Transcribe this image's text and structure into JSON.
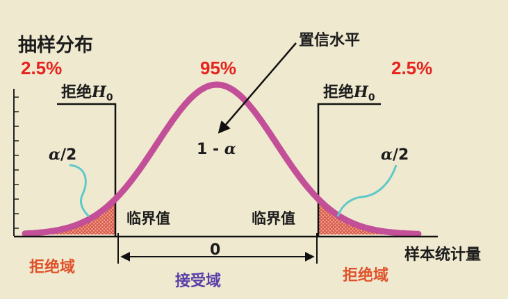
{
  "title": "抽样分布",
  "percent_left": "2.5%",
  "percent_center": "95%",
  "percent_right": "2.5%",
  "confidence_label": "置信水平",
  "confidence_expr_prefix": "1 - ",
  "confidence_expr_symbol": "α",
  "reject_h0_prefix": "拒绝",
  "reject_h0_symbol": "H",
  "reject_h0_sub": "0",
  "alpha_half_symbol": "α",
  "alpha_half_suffix": "/2",
  "critical_value_label": "临界值",
  "zero_label": "0",
  "x_axis_label": "样本统计量",
  "rejection_region_label": "拒绝域",
  "acceptance_region_label": "接受域",
  "colors": {
    "background": "#efe9cf",
    "curve": "#c24f97",
    "tail_fill": "#e06a57",
    "red_text": "#e8231e",
    "orange_text": "#e0522b",
    "purple_text": "#5a3fa8",
    "callout": "#5fc9c9"
  }
}
